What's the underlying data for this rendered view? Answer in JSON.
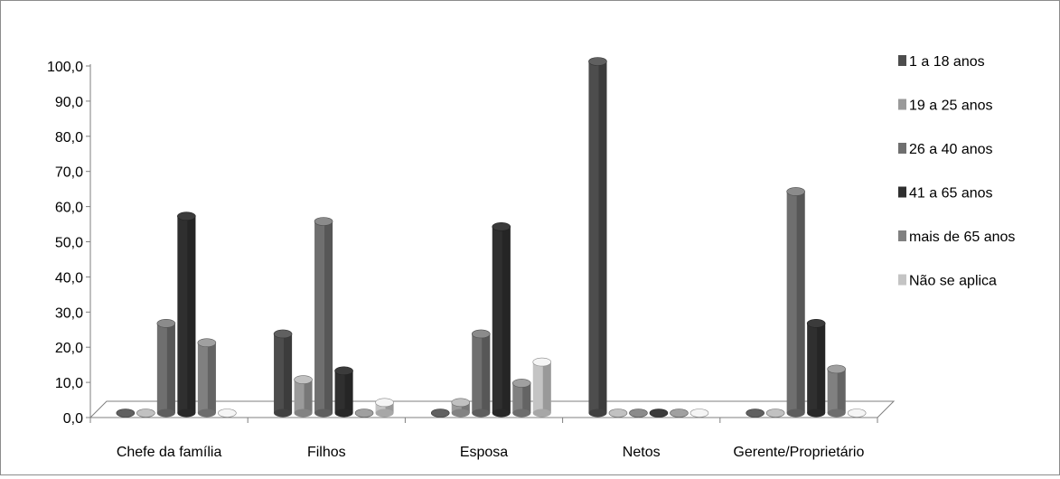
{
  "chart_data": {
    "type": "bar",
    "title": "",
    "xlabel": "",
    "ylabel": "",
    "ylim": [
      0,
      100
    ],
    "y_ticks": [
      "0,0",
      "10,0",
      "20,0",
      "30,0",
      "40,0",
      "50,0",
      "60,0",
      "70,0",
      "80,0",
      "90,0",
      "100,0"
    ],
    "categories": [
      "Chefe da família",
      "Filhos",
      "Esposa",
      "Netos",
      "Gerente/Proprietário"
    ],
    "legend_position": "right",
    "grid": false,
    "series": [
      {
        "name": "1 a 18 anos",
        "color": "#4d4d4d",
        "values": [
          0,
          22.5,
          0,
          100,
          0
        ]
      },
      {
        "name": "19 a 25 anos",
        "color": "#9a9a9a",
        "values": [
          0,
          9.5,
          3,
          0,
          0
        ]
      },
      {
        "name": "26 a 40 anos",
        "color": "#6f6f6f",
        "values": [
          25.5,
          54.5,
          22.5,
          0,
          63
        ]
      },
      {
        "name": "41 a 65 anos",
        "color": "#2f2f2f",
        "values": [
          56,
          12,
          53,
          0,
          25.5
        ]
      },
      {
        "name": "mais de 65 anos",
        "color": "#808080",
        "values": [
          20,
          0,
          8.5,
          0,
          12.5
        ]
      },
      {
        "name": "Não se aplica",
        "color": "#c4c4c4",
        "values": [
          0,
          3,
          14.5,
          0,
          0
        ]
      }
    ]
  }
}
